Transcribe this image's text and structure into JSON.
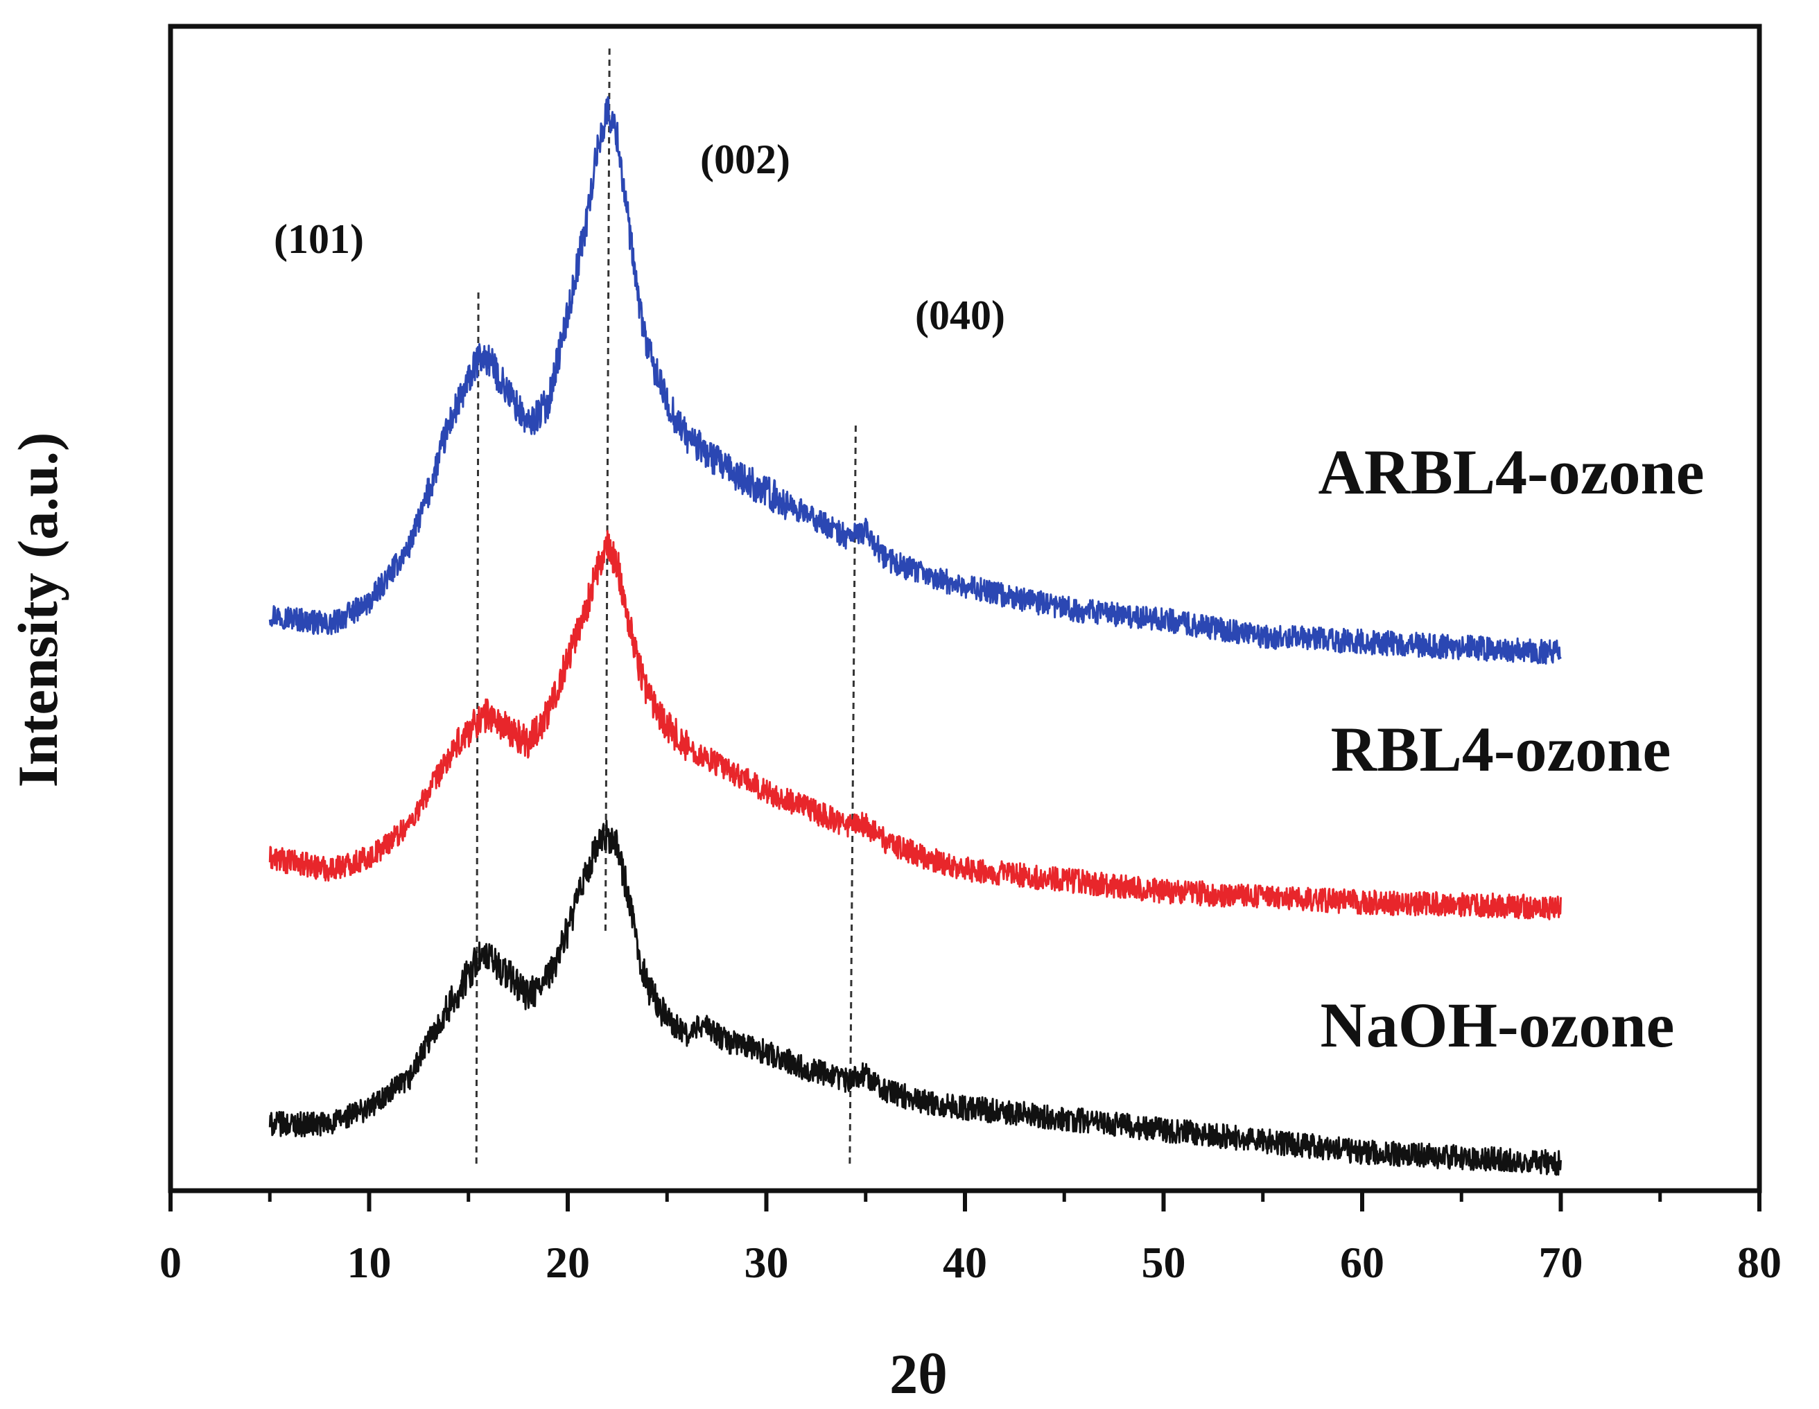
{
  "chart_data": {
    "type": "line",
    "title": "",
    "xlabel": "2θ",
    "ylabel": "Intensity (a.u.)",
    "xlim": [
      0,
      80
    ],
    "ylim": [
      0,
      10.5
    ],
    "x_ticks": [
      0,
      10,
      20,
      30,
      40,
      50,
      60,
      70,
      80
    ],
    "x_tick_labels": [
      "0",
      "10",
      "20",
      "30",
      "40",
      "50",
      "60",
      "70",
      "80"
    ],
    "grid": false,
    "legend": "labels placed right of each curve",
    "series": [
      {
        "name": "ARBL4-ozone",
        "color": "#2b47b3",
        "x": [
          5,
          8,
          10,
          12,
          13,
          14,
          15,
          15.5,
          16,
          17,
          18,
          19,
          20,
          21,
          21.5,
          22,
          22.5,
          23,
          23.5,
          24,
          25,
          26,
          28,
          30,
          32,
          34,
          35,
          36,
          38,
          40,
          45,
          50,
          55,
          60,
          65,
          70
        ],
        "values": [
          5.2,
          5.1,
          5.3,
          5.8,
          6.3,
          6.9,
          7.3,
          7.5,
          7.5,
          7.2,
          6.9,
          7.1,
          7.9,
          8.8,
          9.4,
          9.75,
          9.5,
          8.8,
          8.1,
          7.6,
          7.1,
          6.8,
          6.5,
          6.3,
          6.1,
          5.9,
          5.95,
          5.7,
          5.55,
          5.45,
          5.25,
          5.15,
          5.0,
          4.95,
          4.9,
          4.85
        ]
      },
      {
        "name": "RBL4-ozone",
        "color": "#e8262b",
        "x": [
          5,
          8,
          10,
          12,
          13,
          14,
          15,
          15.5,
          16,
          17,
          18,
          19,
          20,
          21,
          21.5,
          22,
          22.5,
          23,
          23.5,
          24,
          25,
          26,
          28,
          30,
          32,
          34,
          35,
          36,
          38,
          40,
          45,
          50,
          55,
          60,
          65,
          70
        ],
        "values": [
          3.0,
          2.9,
          3.0,
          3.3,
          3.6,
          3.9,
          4.15,
          4.25,
          4.3,
          4.15,
          4.05,
          4.3,
          4.8,
          5.3,
          5.6,
          5.8,
          5.65,
          5.2,
          4.8,
          4.5,
          4.2,
          4.0,
          3.8,
          3.6,
          3.45,
          3.3,
          3.3,
          3.15,
          3.0,
          2.9,
          2.8,
          2.7,
          2.65,
          2.6,
          2.58,
          2.55
        ]
      },
      {
        "name": "NaOH-ozone",
        "color": "#111111",
        "x": [
          5,
          8,
          10,
          12,
          13,
          14,
          15,
          15.5,
          16,
          17,
          18,
          19,
          20,
          21,
          21.5,
          22,
          22.5,
          23,
          23.5,
          24,
          25,
          26,
          26.8,
          28,
          30,
          32,
          34,
          35,
          36,
          38,
          40,
          45,
          50,
          55,
          60,
          65,
          70
        ],
        "values": [
          0.6,
          0.6,
          0.75,
          1.0,
          1.35,
          1.65,
          1.95,
          2.1,
          2.1,
          1.95,
          1.75,
          1.9,
          2.35,
          2.9,
          3.1,
          3.2,
          3.1,
          2.7,
          2.2,
          1.85,
          1.55,
          1.4,
          1.5,
          1.35,
          1.25,
          1.1,
          1.0,
          1.05,
          0.9,
          0.8,
          0.75,
          0.65,
          0.55,
          0.45,
          0.35,
          0.3,
          0.25
        ]
      }
    ],
    "annotations": [
      {
        "text": "(101)",
        "x": 15.5
      },
      {
        "text": "(002)",
        "x": 22.1
      },
      {
        "text": "(040)",
        "x": 34.5
      }
    ]
  }
}
